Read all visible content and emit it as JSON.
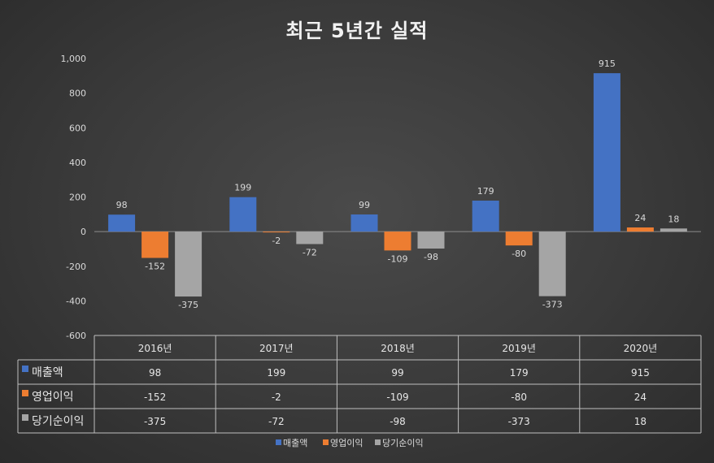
{
  "chart_data": {
    "type": "bar",
    "title": "최근 5년간 실적",
    "categories": [
      "2016년",
      "2017년",
      "2018년",
      "2019년",
      "2020년"
    ],
    "series": [
      {
        "name": "매출액",
        "color": "#4472c4",
        "values": [
          98,
          199,
          99,
          179,
          915
        ]
      },
      {
        "name": "영업이익",
        "color": "#ed7d31",
        "values": [
          -152,
          -2,
          -109,
          -80,
          24
        ]
      },
      {
        "name": "당기순이익",
        "color": "#a5a5a5",
        "values": [
          -375,
          -72,
          -98,
          -373,
          18
        ]
      }
    ],
    "ylim": [
      -600,
      1000
    ],
    "yticks": [
      -600,
      -400,
      -200,
      0,
      200,
      400,
      600,
      800,
      1000
    ],
    "ytick_labels": [
      "-600",
      "-400",
      "-200",
      "0",
      "200",
      "400",
      "600",
      "800",
      "1,000"
    ],
    "legend": "bottom",
    "data_table": true,
    "grid": false
  }
}
